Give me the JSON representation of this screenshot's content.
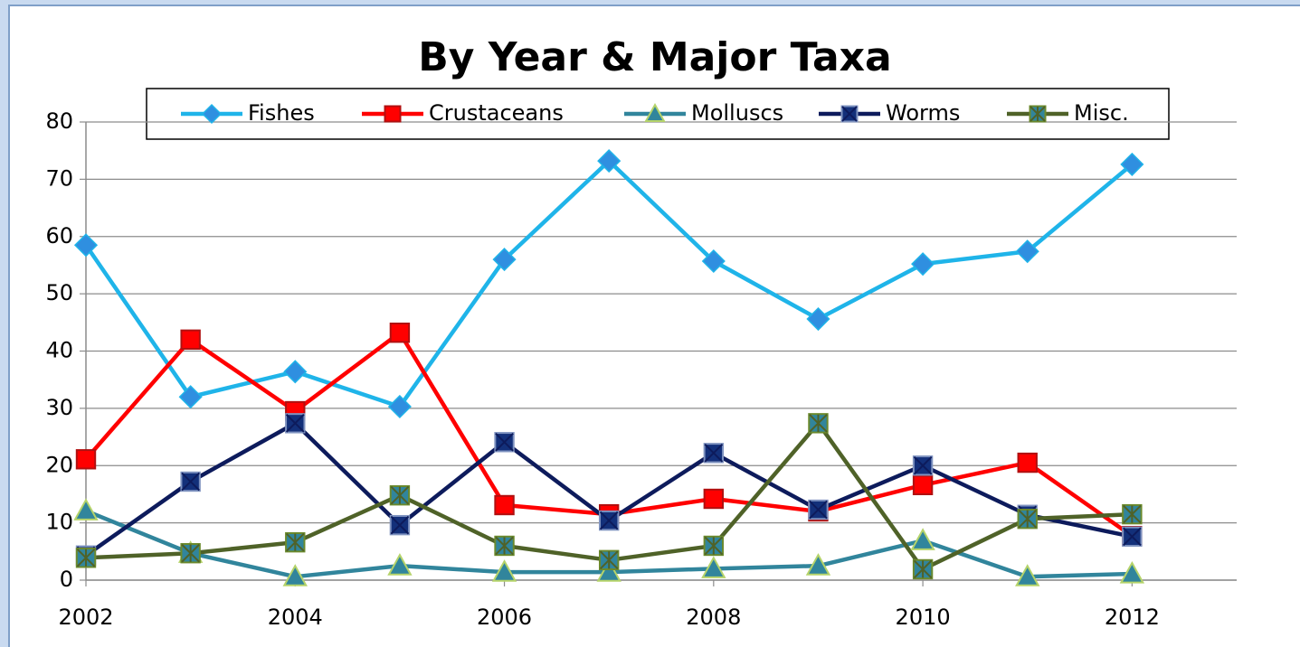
{
  "chart_data": {
    "type": "line",
    "title": "By Year & Major Taxa",
    "x": [
      2002,
      2003,
      2004,
      2005,
      2006,
      2007,
      2008,
      2009,
      2010,
      2011,
      2012
    ],
    "xlim": [
      2002,
      2013
    ],
    "xticks": [
      2002,
      2004,
      2006,
      2008,
      2010,
      2012
    ],
    "ylim": [
      0,
      80
    ],
    "yticks": [
      0,
      10,
      20,
      30,
      40,
      50,
      60,
      70,
      80
    ],
    "grid": true,
    "legend": "top",
    "series": [
      {
        "name": "Fishes",
        "color": "#1fb4e9",
        "marker": "diamond",
        "marker_color": "#2f8fe0",
        "values": [
          58.5,
          32,
          36.4,
          30.3,
          56,
          73.2,
          55.7,
          45.6,
          55.2,
          57.4,
          72.6
        ]
      },
      {
        "name": "Crustaceans",
        "color": "#ff0000",
        "marker": "square",
        "marker_color": "#ff0000",
        "values": [
          21.1,
          42,
          29.5,
          43.2,
          13.1,
          11.5,
          14.2,
          12,
          16.6,
          20.5,
          7.7
        ]
      },
      {
        "name": "Molluscs",
        "color": "#31859c",
        "marker": "triangle",
        "marker_color": "#31859c",
        "values": [
          12.1,
          4.7,
          0.6,
          2.5,
          1.4,
          1.4,
          2,
          2.5,
          6.9,
          0.6,
          1.1
        ]
      },
      {
        "name": "Worms",
        "color": "#0d1b5c",
        "marker": "xsquare",
        "marker_color": "#13307a",
        "values": [
          4.3,
          17.2,
          27.4,
          9.6,
          24.1,
          10.4,
          22.2,
          12.3,
          20,
          11.4,
          7.6
        ]
      },
      {
        "name": "Misc.",
        "color": "#4f6228",
        "marker": "starsquare",
        "marker_color": "#31859c",
        "values": [
          3.9,
          4.7,
          6.6,
          14.8,
          6,
          3.5,
          6,
          27.4,
          1.9,
          10.7,
          11.5
        ]
      }
    ]
  }
}
